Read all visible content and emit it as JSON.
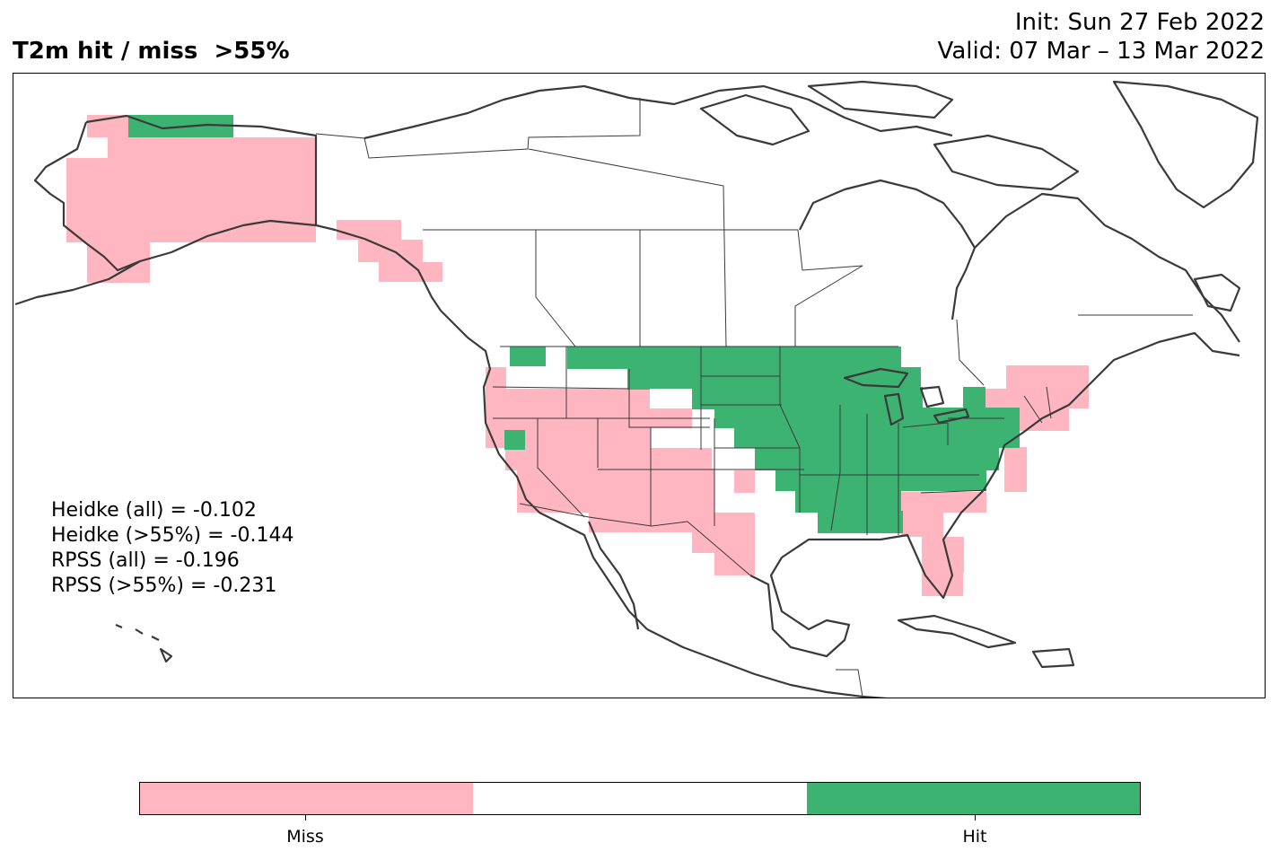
{
  "header": {
    "title": "T2m hit / miss  >55%",
    "init": "Init: Sun 27 Feb 2022",
    "valid": "Valid: 07 Mar – 13 Mar 2022"
  },
  "stats": [
    "Heidke (all) = -0.102",
    "Heidke (>55%) = -0.144",
    "RPSS (all) = -0.196",
    "RPSS (>55%) = -0.231"
  ],
  "colors": {
    "miss": "#ffb6c1",
    "neutral": "#ffffff",
    "hit": "#3cb371",
    "coast": "#3a3a3a"
  },
  "legend": {
    "miss_label": "Miss",
    "hit_label": "Hit"
  }
}
